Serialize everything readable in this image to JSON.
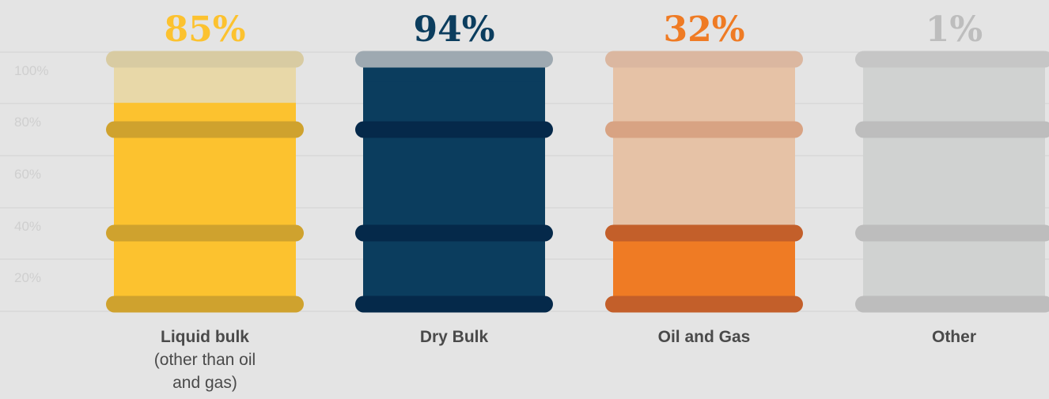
{
  "chart_data": {
    "type": "bar",
    "categories": [
      [
        "Liquid bulk",
        "(other than oil",
        "and gas)"
      ],
      [
        "Dry Bulk"
      ],
      [
        "Oil and Gas"
      ],
      [
        "Other"
      ]
    ],
    "values": [
      85,
      94,
      32,
      1
    ],
    "value_labels": [
      "85%",
      "94%",
      "32%",
      "1%"
    ],
    "y_ticks": [
      "100%",
      "80%",
      "60%",
      "40%",
      "20%"
    ],
    "ylim": [
      0,
      100
    ],
    "grid": true,
    "colors": {
      "fill": [
        "#fcc22f",
        "#0b3d5e",
        "#ef7b24",
        "#c0c0c0"
      ],
      "empty": [
        "#e8d8a8",
        "#0b3d5e",
        "#e6c2a6",
        "#d0d2d1"
      ],
      "ring_top": [
        "#d8cba2",
        "#9ea9b1",
        "#dbb7a0",
        "#c6c6c6"
      ],
      "ring": [
        "#cfa22e",
        "#05294a",
        "#c35f2a",
        "#bdbdbd"
      ],
      "ring_faded": [
        "#cfa22e",
        "#05294a",
        "#d8a383",
        "#bdbdbd"
      ],
      "label": [
        "#fcc22f",
        "#0b3d5e",
        "#ef7b24",
        "#bdbdbd"
      ]
    }
  }
}
